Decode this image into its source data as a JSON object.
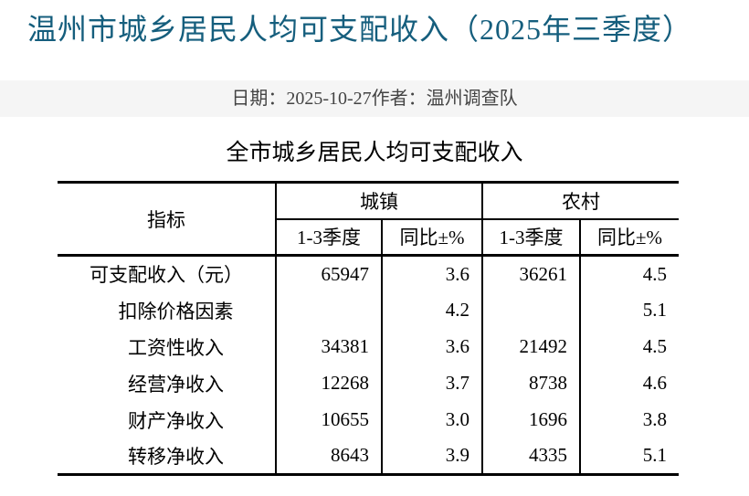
{
  "page": {
    "title": "温州市城乡居民人均可支配收入（2025年三季度）"
  },
  "meta": {
    "date_label": "日期：",
    "date": "2025-10-27",
    "author_label": "作者：",
    "author": "温州调查队"
  },
  "table": {
    "title": "全市城乡居民人均可支配收入",
    "header": {
      "indicator": "指标",
      "urban_group": "城镇",
      "rural_group": "农村",
      "sub": [
        "1-3季度",
        "同比±%",
        "1-3季度",
        "同比±%"
      ]
    },
    "rows": [
      {
        "indicator": "可支配收入（元）",
        "urban_value": "65947",
        "urban_yoy": "3.6",
        "rural_value": "36261",
        "rural_yoy": "4.5"
      },
      {
        "indicator": "　扣除价格因素",
        "urban_value": "",
        "urban_yoy": "4.2",
        "rural_value": "",
        "rural_yoy": "5.1"
      },
      {
        "indicator": "　工资性收入",
        "urban_value": "34381",
        "urban_yoy": "3.6",
        "rural_value": "21492",
        "rural_yoy": "4.5"
      },
      {
        "indicator": "　经营净收入",
        "urban_value": "12268",
        "urban_yoy": "3.7",
        "rural_value": "8738",
        "rural_yoy": "4.6"
      },
      {
        "indicator": "　财产净收入",
        "urban_value": "10655",
        "urban_yoy": "3.0",
        "rural_value": "1696",
        "rural_yoy": "3.8"
      },
      {
        "indicator": "　转移净收入",
        "urban_value": "8643",
        "urban_yoy": "3.9",
        "rural_value": "4335",
        "rural_yoy": "5.1"
      }
    ]
  },
  "colors": {
    "page_title": "#155e7d",
    "meta_bar_bg": "#f5f5f5",
    "meta_text": "#444444",
    "table_border": "#000000",
    "table_text": "#000000",
    "page_bg": "#ffffff"
  }
}
